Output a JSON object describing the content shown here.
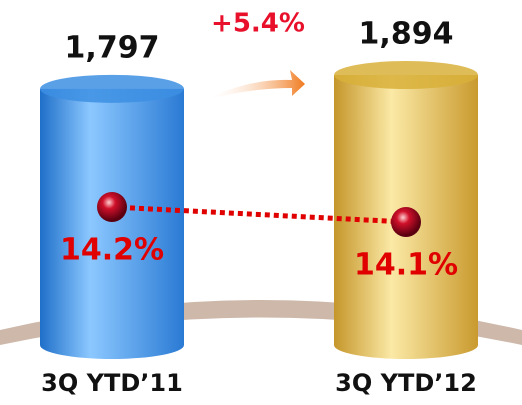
{
  "chart_data": {
    "type": "bar",
    "categories": [
      "3Q YTD’11",
      "3Q YTD’12"
    ],
    "series": [
      {
        "type": "bar",
        "colors": [
          "#3d8fe3",
          "#d8b03a"
        ],
        "values": [
          1797,
          1894
        ],
        "value_labels": [
          "1,797",
          "1,894"
        ]
      },
      {
        "type": "line",
        "color": "#e00000",
        "values": [
          14.2,
          14.1
        ],
        "value_labels": [
          "14.2%",
          "14.1%"
        ]
      }
    ],
    "annotation": "+5.4%"
  }
}
